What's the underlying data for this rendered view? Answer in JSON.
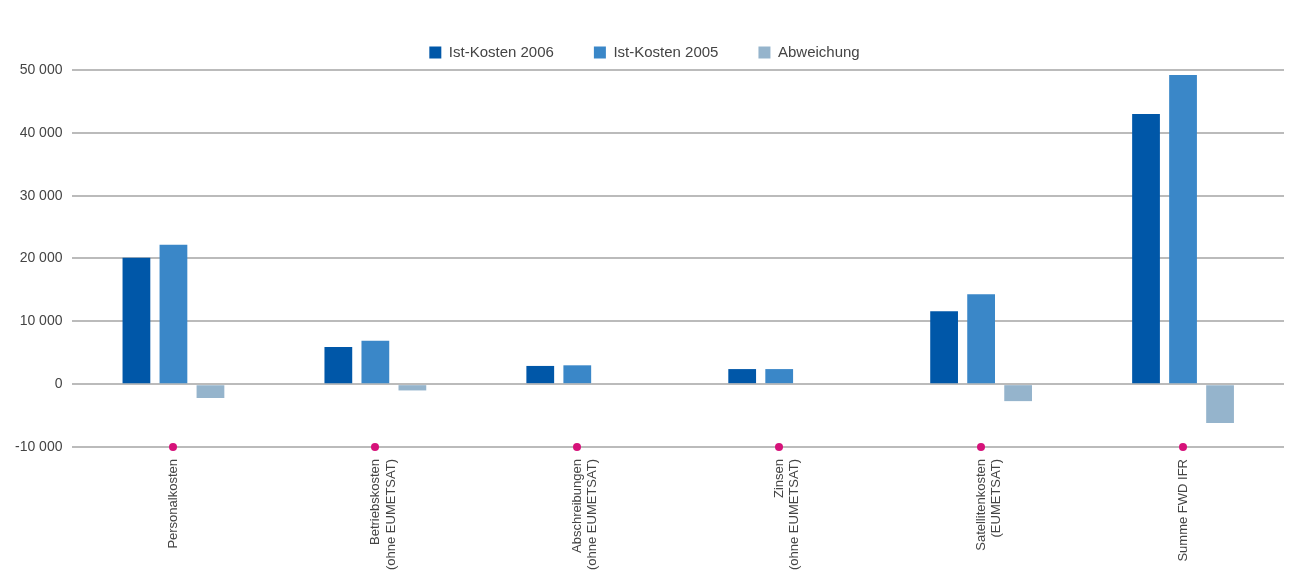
{
  "chart_data": {
    "type": "bar",
    "categories": [
      "Personalkosten",
      "Betriebskosten\n(ohne EUMETSAT)",
      "Abschreibungen\n(ohne EUMETSAT)",
      "Zinsen\n(ohne EUMETSAT)",
      "Satellitenkosten\n(EUMETSAT)",
      "Summe FWD IFR"
    ],
    "series": [
      {
        "name": "Ist-Kosten 2006",
        "color": "#0057a8",
        "values": [
          20100,
          5900,
          2900,
          2400,
          11600,
          43000
        ]
      },
      {
        "name": "Ist-Kosten 2005",
        "color": "#3a87c8",
        "values": [
          22200,
          6900,
          3000,
          2400,
          14300,
          49200
        ]
      },
      {
        "name": "Abweichung",
        "color": "#95b4cc",
        "values": [
          -2200,
          -1000,
          null,
          0,
          -2700,
          -6200
        ]
      }
    ],
    "ylim": [
      -10000,
      50000
    ],
    "yticks": [
      {
        "value": -10000,
        "label": "-10 000"
      },
      0,
      {
        "value": 10000,
        "label": "10 000"
      },
      {
        "value": 20000,
        "label": "20 000"
      },
      {
        "value": 30000,
        "label": "30 000"
      },
      {
        "value": 40000,
        "label": "40 000"
      },
      {
        "value": 50000,
        "label": "50 000"
      }
    ],
    "grid": "y",
    "legend": "top"
  }
}
